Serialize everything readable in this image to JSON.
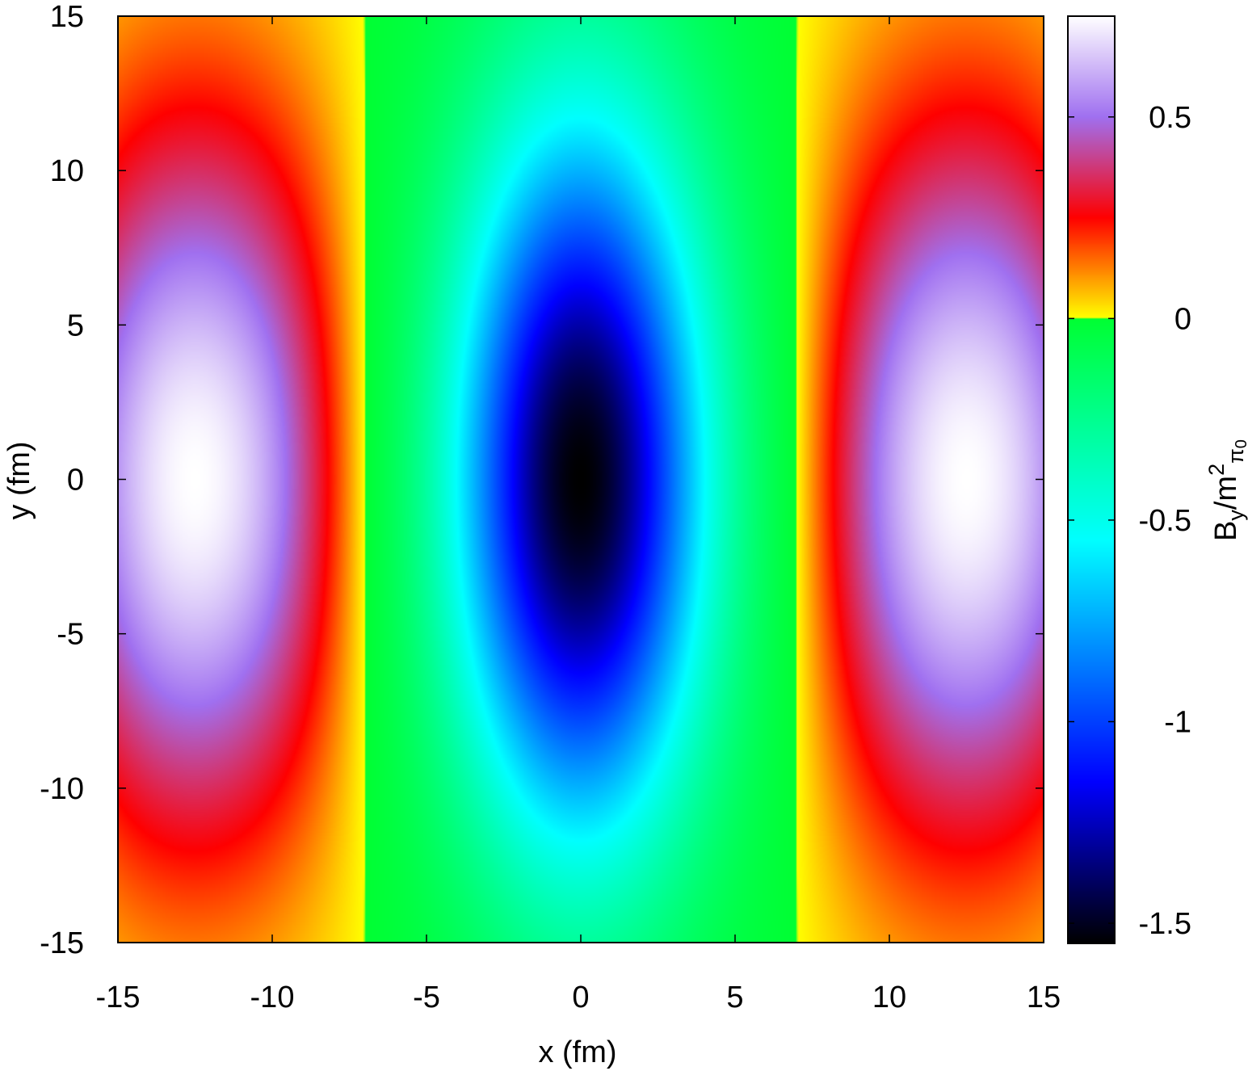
{
  "chart_data": {
    "type": "heatmap",
    "title": "",
    "xlabel": "x (fm)",
    "ylabel": "y (fm)",
    "colorbar_label": "B_y/m^2_π0",
    "colorbar_label_parts": {
      "base": "B",
      "sub1": "y",
      "mid": "/m",
      "sup": "2",
      "sub2": "π",
      "sub2b": "0"
    },
    "xlim": [
      -15,
      15
    ],
    "ylim": [
      -15,
      15
    ],
    "zlim": [
      -1.55,
      0.75
    ],
    "x_ticks": [
      {
        "value": -15,
        "label": "-15"
      },
      {
        "value": -10,
        "label": "-10"
      },
      {
        "value": -5,
        "label": "-5"
      },
      {
        "value": 0,
        "label": "0"
      },
      {
        "value": 5,
        "label": "5"
      },
      {
        "value": 10,
        "label": "10"
      },
      {
        "value": 15,
        "label": "15"
      }
    ],
    "y_ticks": [
      {
        "value": -15,
        "label": "-15"
      },
      {
        "value": -10,
        "label": "-10"
      },
      {
        "value": -5,
        "label": "-5"
      },
      {
        "value": 0,
        "label": "0"
      },
      {
        "value": 5,
        "label": "5"
      },
      {
        "value": 10,
        "label": "10"
      },
      {
        "value": 15,
        "label": "15"
      }
    ],
    "colorbar_ticks": [
      {
        "value": 0.5,
        "label": "0.5"
      },
      {
        "value": 0,
        "label": "0"
      },
      {
        "value": -0.5,
        "label": "-0.5"
      },
      {
        "value": -1,
        "label": "-1"
      },
      {
        "value": -1.5,
        "label": "-1.5"
      }
    ],
    "features": {
      "minimum": {
        "x": 0,
        "y": 0,
        "value": -1.55
      },
      "maxima": [
        {
          "x": -12.5,
          "y": 0,
          "value": 0.75
        },
        {
          "x": 12.5,
          "y": 0,
          "value": 0.75
        }
      ],
      "zero_contour_x": [
        -7,
        7
      ]
    },
    "colormap": [
      {
        "value": -1.55,
        "color": "#000000"
      },
      {
        "value": -1.15,
        "color": "#0000ff"
      },
      {
        "value": -0.55,
        "color": "#00ffff"
      },
      {
        "value": 0.0,
        "color": "#00ff33"
      },
      {
        "value": 0.001,
        "color": "#ffff00"
      },
      {
        "value": 0.25,
        "color": "#ff0000"
      },
      {
        "value": 0.5,
        "color": "#a070f0"
      },
      {
        "value": 0.75,
        "color": "#ffffff"
      }
    ],
    "grid": false,
    "legend": "none"
  }
}
